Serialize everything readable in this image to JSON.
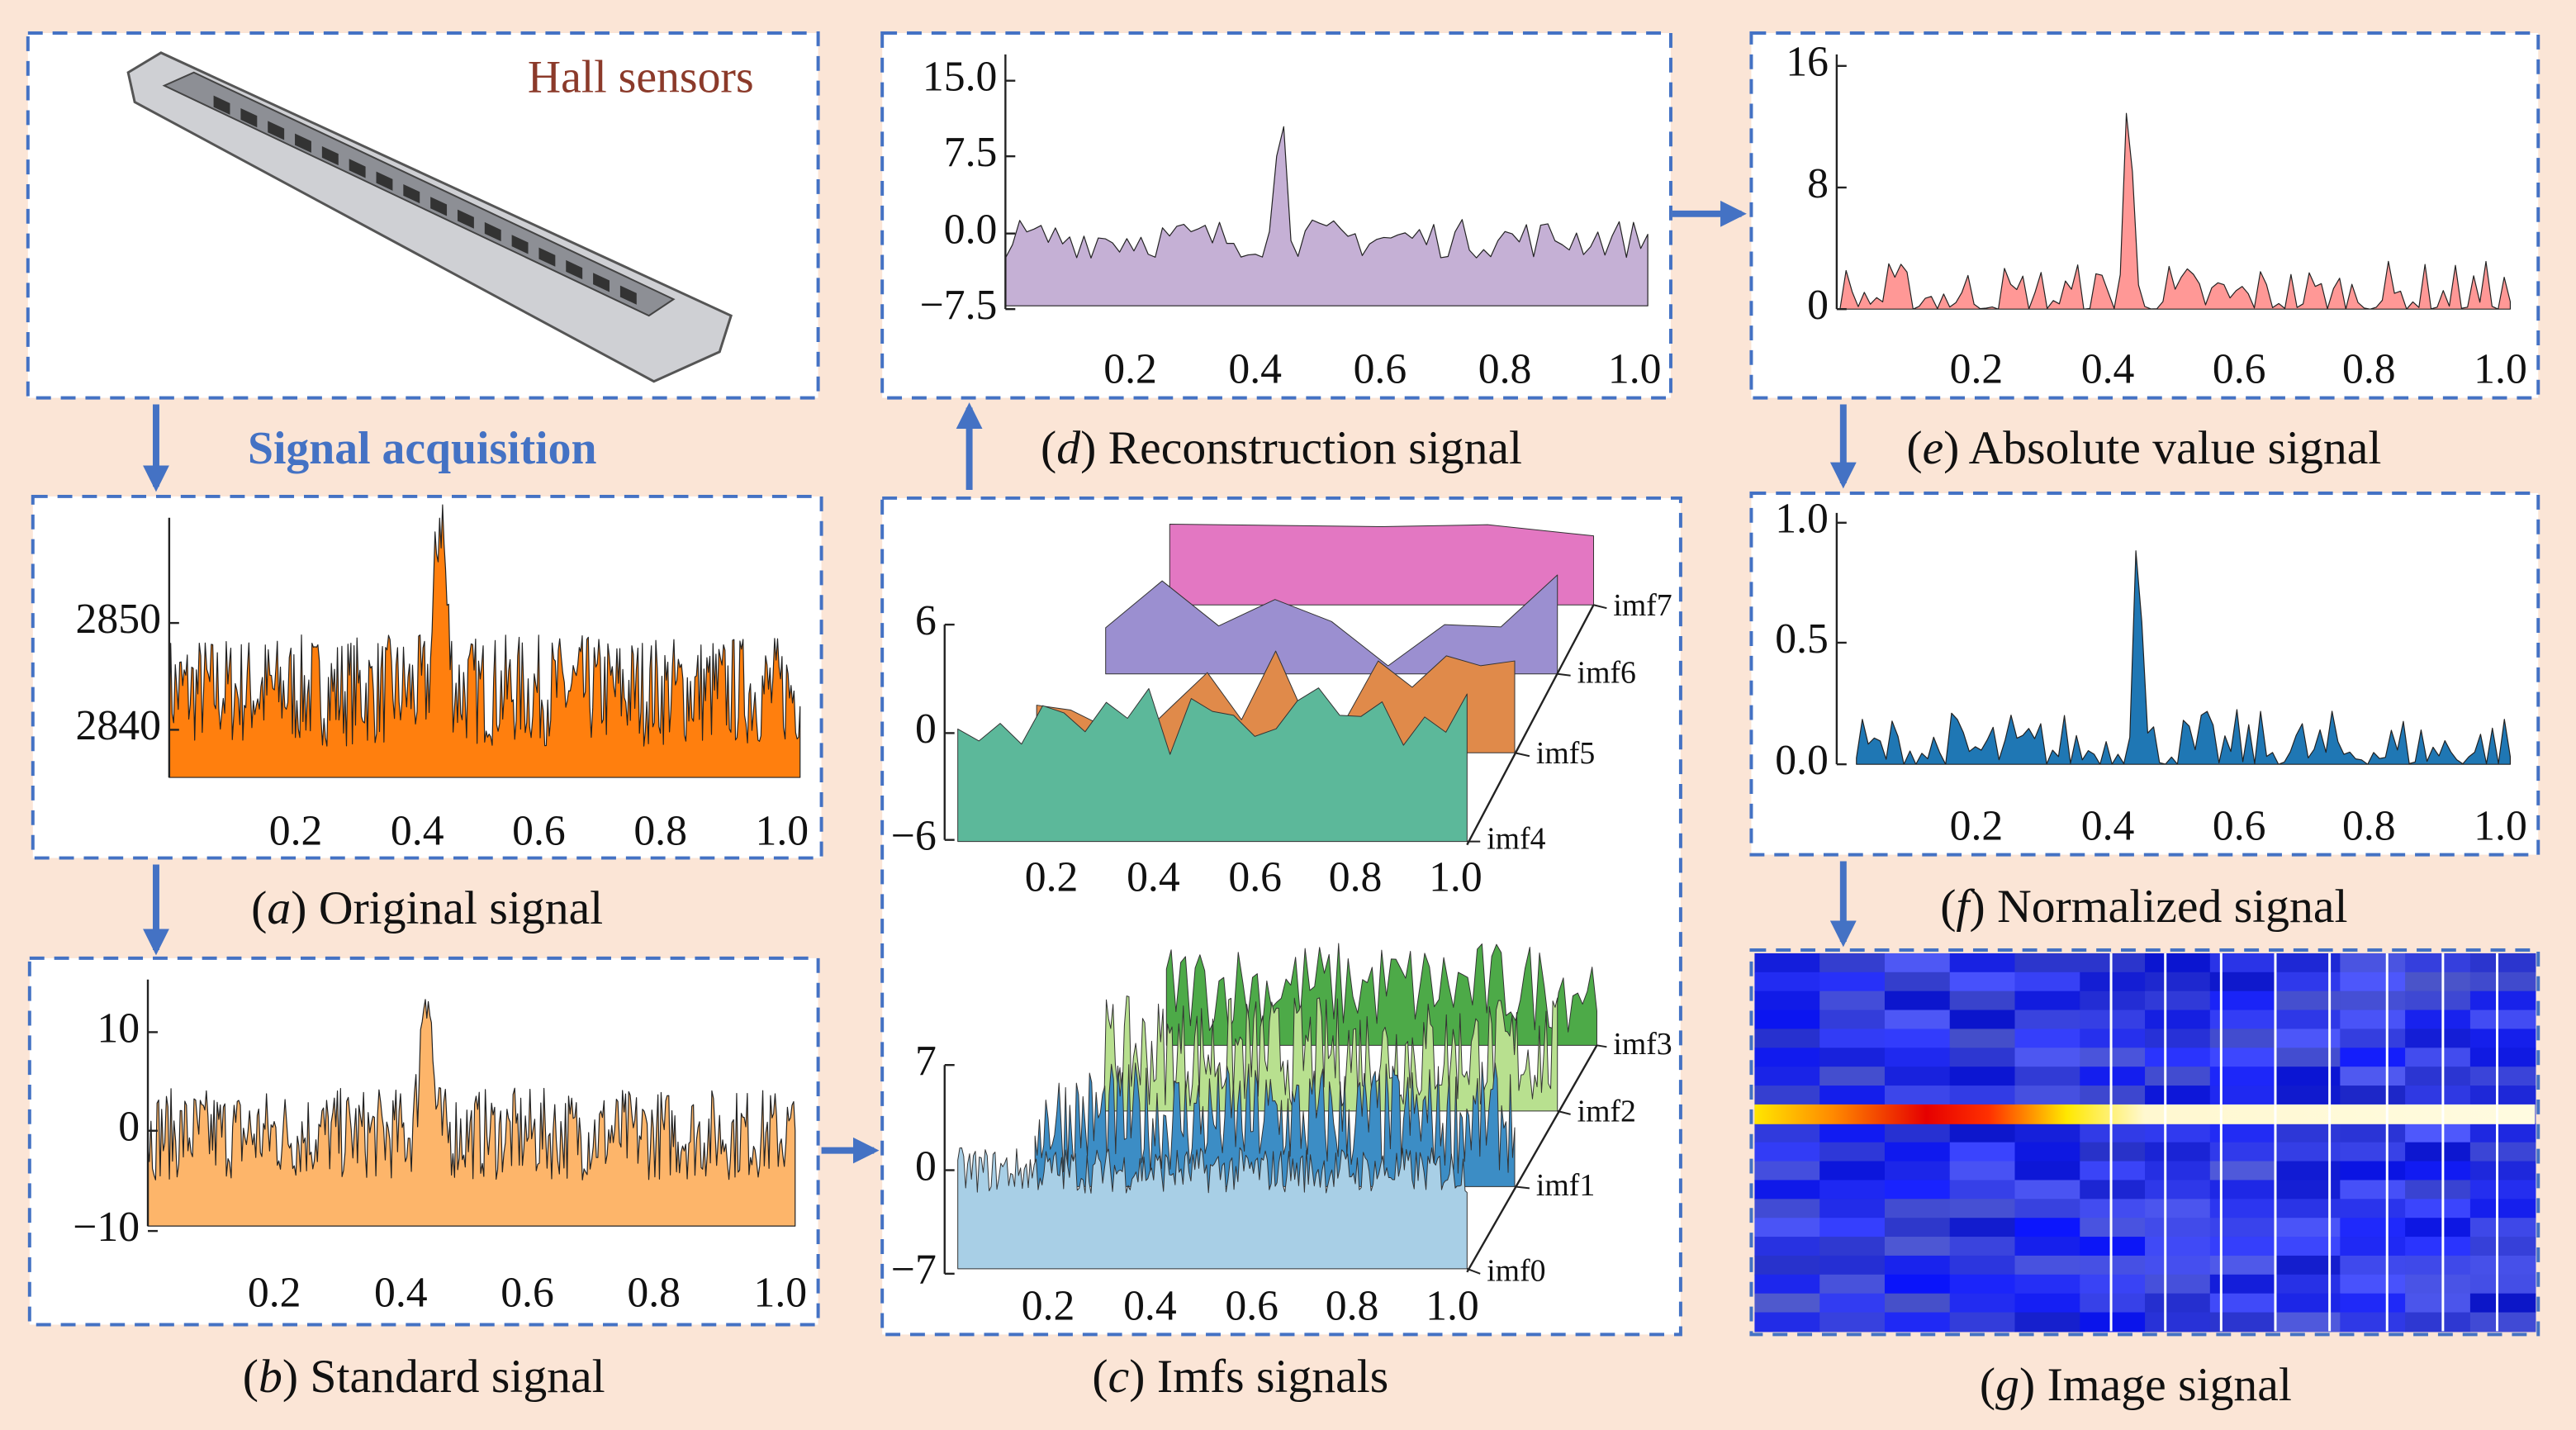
{
  "hall_label": "Hall sensors",
  "acquisition_label": "Signal acquisition",
  "panels": {
    "a": {
      "caption": [
        "(",
        "a",
        ") Original signal"
      ],
      "yticks": [
        "2850",
        "2840"
      ],
      "xticks": [
        "0.2",
        "0.4",
        "0.6",
        "0.8",
        "1.0"
      ]
    },
    "b": {
      "caption": [
        "(",
        "b",
        ") Standard signal"
      ],
      "yticks": [
        "10",
        "0",
        "−10"
      ],
      "xticks": [
        "0.2",
        "0.4",
        "0.6",
        "0.8",
        "1.0"
      ]
    },
    "c": {
      "caption": [
        "(",
        "c",
        ") Imfs signals"
      ],
      "upper": {
        "yticks": [
          "6",
          "0",
          "−6"
        ],
        "xticks": [
          "0.2",
          "0.4",
          "0.6",
          "0.8",
          "1.0"
        ],
        "layers": [
          "imf4",
          "imf5",
          "imf6",
          "imf7"
        ]
      },
      "lower": {
        "yticks": [
          "7",
          "0",
          "−7"
        ],
        "xticks": [
          "0.2",
          "0.4",
          "0.6",
          "0.8",
          "1.0"
        ],
        "layers": [
          "imf0",
          "imf1",
          "imf2",
          "imf3"
        ]
      }
    },
    "d": {
      "caption": [
        "(",
        "d",
        ") Reconstruction signal"
      ],
      "yticks": [
        "15.0",
        "7.5",
        "0.0",
        "−7.5"
      ],
      "xticks": [
        "0.2",
        "0.4",
        "0.6",
        "0.8",
        "1.0"
      ]
    },
    "e": {
      "caption": [
        "(",
        "e",
        ") Absolute value signal"
      ],
      "yticks": [
        "16",
        "8",
        "0"
      ],
      "xticks": [
        "0.2",
        "0.4",
        "0.6",
        "0.8",
        "1.0"
      ]
    },
    "f": {
      "caption": [
        "(",
        "f",
        ") Normalized signal"
      ],
      "yticks": [
        "1.0",
        "0.5",
        "0.0"
      ],
      "xticks": [
        "0.2",
        "0.4",
        "0.6",
        "0.8",
        "1.0"
      ]
    },
    "g": {
      "caption": [
        "(",
        "g",
        ") Image signal"
      ]
    }
  }
}
